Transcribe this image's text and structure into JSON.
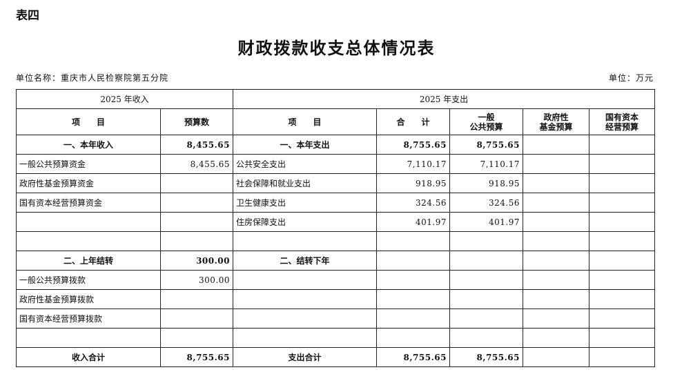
{
  "doc": {
    "label": "表四",
    "title": "财政拨款收支总体情况表",
    "unit_name": "单位名称：重庆市人民检察院第五分院",
    "unit": "单位：万元"
  },
  "header": {
    "income_group": "2025 年收入",
    "expense_group": "2025 年支出",
    "item": "项　　目",
    "budget": "预算数",
    "total": "合　　计",
    "general": "一般\n公共预算",
    "gov_fund": "政府性\n基金预算",
    "state_capital": "国有资本\n经营预算"
  },
  "rows": [
    {
      "in_item": "一、本年收入",
      "in_val": "8,455.65",
      "ex_item": "一、本年支出",
      "total": "8,755.65",
      "general": "8,755.65",
      "gov": "",
      "state": "",
      "bold": true
    },
    {
      "in_item": "一般公共预算资金",
      "in_val": "8,455.65",
      "ex_item": "公共安全支出",
      "total": "7,110.17",
      "general": "7,110.17",
      "gov": "",
      "state": ""
    },
    {
      "in_item": "政府性基金预算资金",
      "in_val": "",
      "ex_item": "社会保障和就业支出",
      "total": "918.95",
      "general": "918.95",
      "gov": "",
      "state": ""
    },
    {
      "in_item": "国有资本经营预算资金",
      "in_val": "",
      "ex_item": "卫生健康支出",
      "total": "324.56",
      "general": "324.56",
      "gov": "",
      "state": ""
    },
    {
      "in_item": "",
      "in_val": "",
      "ex_item": "住房保障支出",
      "total": "401.97",
      "general": "401.97",
      "gov": "",
      "state": ""
    },
    {
      "in_item": "",
      "in_val": "",
      "ex_item": "",
      "total": "",
      "general": "",
      "gov": "",
      "state": ""
    },
    {
      "in_item": "二、上年结转",
      "in_val": "300.00",
      "ex_item": "二、结转下年",
      "total": "",
      "general": "",
      "gov": "",
      "state": "",
      "bold": true
    },
    {
      "in_item": "一般公共预算拨款",
      "in_val": "300.00",
      "ex_item": "",
      "total": "",
      "general": "",
      "gov": "",
      "state": ""
    },
    {
      "in_item": "政府性基金预算拨款",
      "in_val": "",
      "ex_item": "",
      "total": "",
      "general": "",
      "gov": "",
      "state": ""
    },
    {
      "in_item": "国有资本经营预算拨款",
      "in_val": "",
      "ex_item": "",
      "total": "",
      "general": "",
      "gov": "",
      "state": ""
    },
    {
      "in_item": "",
      "in_val": "",
      "ex_item": "",
      "total": "",
      "general": "",
      "gov": "",
      "state": ""
    },
    {
      "in_item": "收入合计",
      "in_val": "8,755.65",
      "ex_item": "支出合计",
      "total": "8,755.65",
      "general": "8,755.65",
      "gov": "",
      "state": "",
      "bold": true
    }
  ]
}
